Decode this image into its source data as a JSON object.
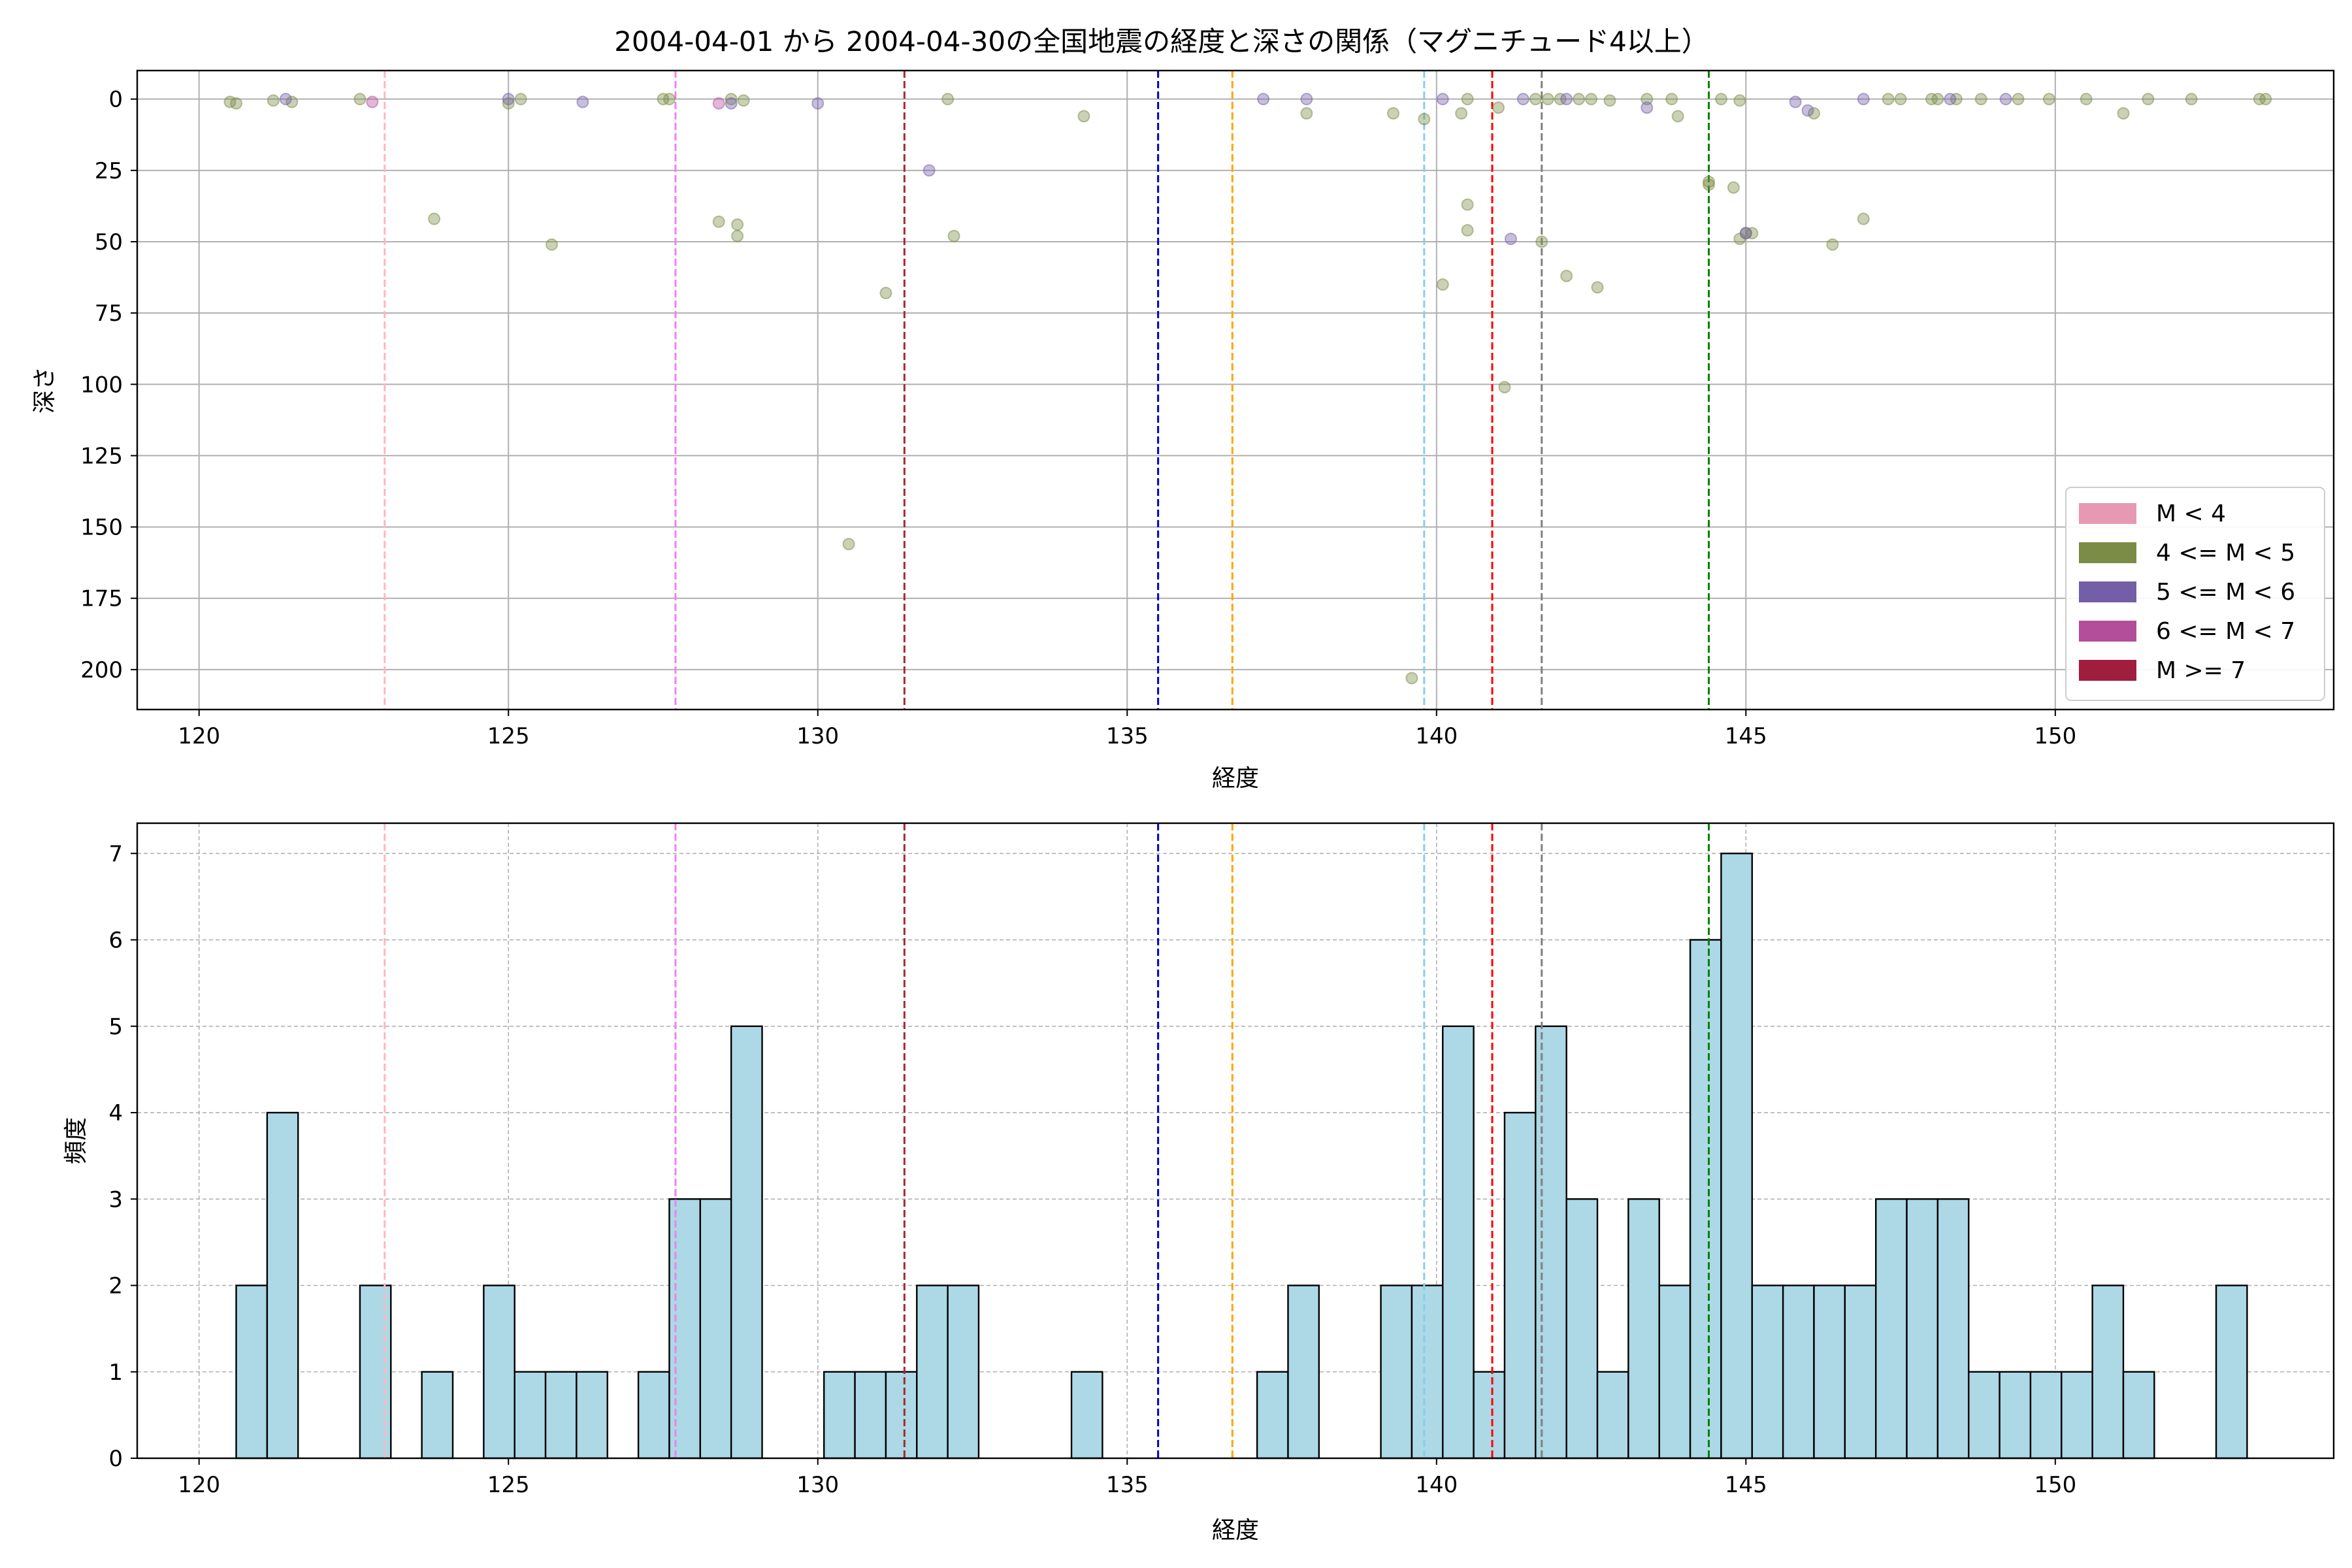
{
  "chart_data": [
    {
      "type": "scatter",
      "title": "2004-04-01 から 2004-04-30の全国地震の経度と深さの関係（マグニチュード4以上）",
      "xlabel": "経度",
      "ylabel": "深さ",
      "xlim": [
        119,
        154.5
      ],
      "ylim": [
        214,
        -10
      ],
      "y_inverted": true,
      "xticks": [
        120,
        125,
        130,
        135,
        140,
        145,
        150
      ],
      "yticks": [
        0,
        25,
        50,
        75,
        100,
        125,
        150,
        175,
        200
      ],
      "grid": true,
      "legend_position": "lower-right",
      "legend": [
        {
          "label": "M < 4",
          "color": "#e799b4"
        },
        {
          "label": "4 <= M < 5",
          "color": "#7a8c45"
        },
        {
          "label": "5 <= M < 6",
          "color": "#735ea8"
        },
        {
          "label": "6 <= M < 7",
          "color": "#b34e9a"
        },
        {
          "label": "M >= 7",
          "color": "#a11d3d"
        }
      ],
      "series": [
        {
          "name": "4 <= M < 5",
          "color": "#7a8c45",
          "points": [
            [
              120.5,
              1
            ],
            [
              120.6,
              1.5
            ],
            [
              121.2,
              0.5
            ],
            [
              121.5,
              1
            ],
            [
              122.6,
              0
            ],
            [
              125.0,
              1.5
            ],
            [
              125.2,
              0
            ],
            [
              127.5,
              0
            ],
            [
              127.6,
              0
            ],
            [
              128.6,
              0
            ],
            [
              128.8,
              0.5
            ],
            [
              132.1,
              0
            ],
            [
              134.3,
              6
            ],
            [
              137.9,
              5
            ],
            [
              139.3,
              5
            ],
            [
              139.8,
              7
            ],
            [
              140.4,
              5
            ],
            [
              140.5,
              0
            ],
            [
              141.0,
              3
            ],
            [
              141.6,
              0
            ],
            [
              141.8,
              0
            ],
            [
              142.0,
              0
            ],
            [
              142.3,
              0
            ],
            [
              142.5,
              0
            ],
            [
              142.8,
              0.5
            ],
            [
              143.4,
              0
            ],
            [
              143.8,
              0
            ],
            [
              143.9,
              6
            ],
            [
              144.6,
              0
            ],
            [
              144.9,
              0.5
            ],
            [
              146.1,
              5
            ],
            [
              147.3,
              0
            ],
            [
              147.5,
              0
            ],
            [
              148.0,
              0
            ],
            [
              148.1,
              0
            ],
            [
              148.4,
              0
            ],
            [
              148.8,
              0
            ],
            [
              149.4,
              0
            ],
            [
              149.9,
              0
            ],
            [
              150.5,
              0
            ],
            [
              151.1,
              5
            ],
            [
              151.5,
              0
            ],
            [
              152.2,
              0
            ],
            [
              153.3,
              0
            ],
            [
              153.4,
              0
            ],
            [
              123.8,
              42
            ],
            [
              125.7,
              51
            ],
            [
              128.4,
              43
            ],
            [
              128.7,
              44
            ],
            [
              128.7,
              48
            ],
            [
              131.1,
              68
            ],
            [
              130.5,
              156
            ],
            [
              132.2,
              48
            ],
            [
              140.1,
              65
            ],
            [
              140.5,
              37
            ],
            [
              140.5,
              46
            ],
            [
              141.1,
              101
            ],
            [
              141.7,
              50
            ],
            [
              142.1,
              62
            ],
            [
              142.6,
              66
            ],
            [
              144.4,
              30
            ],
            [
              144.4,
              29
            ],
            [
              144.8,
              31
            ],
            [
              144.9,
              49
            ],
            [
              145.0,
              47
            ],
            [
              145.1,
              47
            ],
            [
              146.4,
              51
            ],
            [
              146.9,
              42
            ],
            [
              139.6,
              203
            ]
          ]
        },
        {
          "name": "5 <= M < 6",
          "color": "#735ea8",
          "points": [
            [
              121.4,
              0
            ],
            [
              125.0,
              0
            ],
            [
              126.2,
              1
            ],
            [
              128.6,
              1.5
            ],
            [
              130.0,
              1.5
            ],
            [
              131.8,
              25
            ],
            [
              137.2,
              0
            ],
            [
              137.9,
              0
            ],
            [
              140.1,
              0
            ],
            [
              141.2,
              49
            ],
            [
              141.4,
              0
            ],
            [
              142.1,
              0
            ],
            [
              143.4,
              3
            ],
            [
              145.8,
              1
            ],
            [
              146.0,
              4
            ],
            [
              146.9,
              0
            ],
            [
              148.3,
              0
            ],
            [
              149.2,
              0
            ],
            [
              145.0,
              47
            ]
          ]
        },
        {
          "name": "6 <= M < 7",
          "color": "#b34e9a",
          "points": [
            [
              122.8,
              1
            ],
            [
              128.4,
              1.5
            ]
          ]
        }
      ],
      "vlines": [
        {
          "x": 123.0,
          "color": "#ffb6c1"
        },
        {
          "x": 127.7,
          "color": "#ee82ee"
        },
        {
          "x": 131.4,
          "color": "#a52a2a"
        },
        {
          "x": 135.5,
          "color": "#0000cd"
        },
        {
          "x": 136.7,
          "color": "#ffa500"
        },
        {
          "x": 139.8,
          "color": "#87ceeb"
        },
        {
          "x": 140.9,
          "color": "#ff0000"
        },
        {
          "x": 141.7,
          "color": "#808080"
        },
        {
          "x": 144.4,
          "color": "#008000"
        }
      ]
    },
    {
      "type": "bar",
      "title": "",
      "xlabel": "経度",
      "ylabel": "頻度",
      "xlim": [
        119,
        154.5
      ],
      "ylim": [
        0,
        7.35
      ],
      "xticks": [
        120,
        125,
        130,
        135,
        140,
        145,
        150
      ],
      "yticks": [
        0,
        1,
        2,
        3,
        4,
        5,
        6,
        7
      ],
      "grid": true,
      "bar_color": "#add8e6",
      "bin_width": 0.5,
      "bins": [
        {
          "start": 120.6,
          "count": 2
        },
        {
          "start": 121.1,
          "count": 4
        },
        {
          "start": 122.6,
          "count": 2
        },
        {
          "start": 123.6,
          "count": 1
        },
        {
          "start": 124.6,
          "count": 2
        },
        {
          "start": 125.1,
          "count": 1
        },
        {
          "start": 125.6,
          "count": 1
        },
        {
          "start": 126.1,
          "count": 1
        },
        {
          "start": 127.1,
          "count": 1
        },
        {
          "start": 127.6,
          "count": 3
        },
        {
          "start": 128.1,
          "count": 3
        },
        {
          "start": 128.6,
          "count": 5
        },
        {
          "start": 130.1,
          "count": 1
        },
        {
          "start": 130.6,
          "count": 1
        },
        {
          "start": 131.1,
          "count": 1
        },
        {
          "start": 131.6,
          "count": 2
        },
        {
          "start": 132.1,
          "count": 2
        },
        {
          "start": 134.1,
          "count": 1
        },
        {
          "start": 137.1,
          "count": 1
        },
        {
          "start": 137.6,
          "count": 2
        },
        {
          "start": 139.1,
          "count": 2
        },
        {
          "start": 139.6,
          "count": 2
        },
        {
          "start": 140.1,
          "count": 5
        },
        {
          "start": 140.6,
          "count": 1
        },
        {
          "start": 141.1,
          "count": 4
        },
        {
          "start": 141.6,
          "count": 5
        },
        {
          "start": 142.1,
          "count": 3
        },
        {
          "start": 142.6,
          "count": 1
        },
        {
          "start": 143.1,
          "count": 3
        },
        {
          "start": 143.6,
          "count": 2
        },
        {
          "start": 144.1,
          "count": 6
        },
        {
          "start": 144.6,
          "count": 7
        },
        {
          "start": 145.1,
          "count": 2
        },
        {
          "start": 145.6,
          "count": 2
        },
        {
          "start": 146.1,
          "count": 2
        },
        {
          "start": 146.6,
          "count": 2
        },
        {
          "start": 147.1,
          "count": 3
        },
        {
          "start": 147.6,
          "count": 3
        },
        {
          "start": 148.1,
          "count": 3
        },
        {
          "start": 148.6,
          "count": 1
        },
        {
          "start": 149.1,
          "count": 1
        },
        {
          "start": 149.6,
          "count": 1
        },
        {
          "start": 150.1,
          "count": 1
        },
        {
          "start": 150.6,
          "count": 2
        },
        {
          "start": 151.1,
          "count": 1
        },
        {
          "start": 152.6,
          "count": 2
        }
      ],
      "vlines": [
        {
          "x": 123.0,
          "color": "#ffb6c1"
        },
        {
          "x": 127.7,
          "color": "#ee82ee"
        },
        {
          "x": 131.4,
          "color": "#a52a2a"
        },
        {
          "x": 135.5,
          "color": "#0000cd"
        },
        {
          "x": 136.7,
          "color": "#ffa500"
        },
        {
          "x": 139.8,
          "color": "#87ceeb"
        },
        {
          "x": 140.9,
          "color": "#ff0000"
        },
        {
          "x": 141.7,
          "color": "#808080"
        },
        {
          "x": 144.4,
          "color": "#008000"
        }
      ]
    }
  ]
}
